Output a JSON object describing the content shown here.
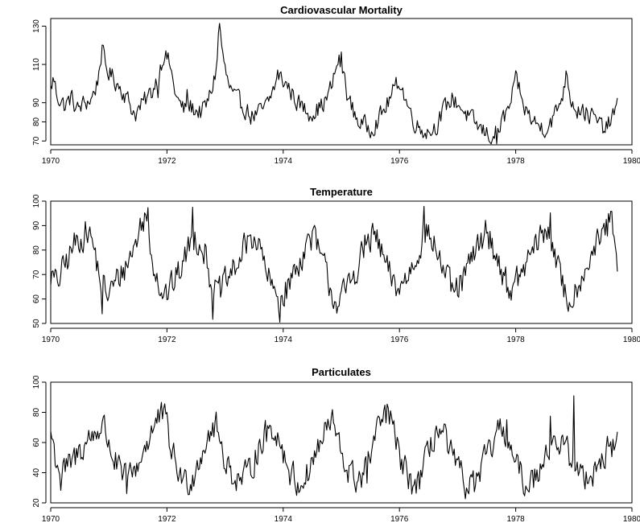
{
  "figure": {
    "background": "#ffffff",
    "line_color": "#000000"
  },
  "chart_data": [
    {
      "type": "line",
      "title": "Cardiovascular Mortality",
      "xlabel": "",
      "ylabel": "",
      "xlim": [
        1970,
        1980
      ],
      "ylim": [
        68,
        134
      ],
      "x_ticks": [
        1970,
        1972,
        1974,
        1976,
        1978,
        1980
      ],
      "y_ticks": [
        70,
        80,
        90,
        110,
        130
      ],
      "grid": false,
      "legend": "none",
      "frequency": "weekly",
      "x_start": 1970.0,
      "x_end": 1979.75,
      "anchors": [
        [
          1970.0,
          97
        ],
        [
          1970.05,
          103
        ],
        [
          1970.1,
          95
        ],
        [
          1970.15,
          92
        ],
        [
          1970.25,
          88
        ],
        [
          1970.35,
          93
        ],
        [
          1970.45,
          86
        ],
        [
          1970.55,
          89
        ],
        [
          1970.7,
          92
        ],
        [
          1970.8,
          100
        ],
        [
          1970.88,
          118
        ],
        [
          1970.95,
          108
        ],
        [
          1971.05,
          104
        ],
        [
          1971.15,
          100
        ],
        [
          1971.25,
          96
        ],
        [
          1971.35,
          90
        ],
        [
          1971.45,
          84
        ],
        [
          1971.55,
          88
        ],
        [
          1971.65,
          92
        ],
        [
          1971.75,
          96
        ],
        [
          1971.85,
          105
        ],
        [
          1971.95,
          116
        ],
        [
          1972.05,
          110
        ],
        [
          1972.12,
          98
        ],
        [
          1972.2,
          90
        ],
        [
          1972.3,
          86
        ],
        [
          1972.4,
          88
        ],
        [
          1972.5,
          86
        ],
        [
          1972.6,
          85
        ],
        [
          1972.7,
          90
        ],
        [
          1972.78,
          98
        ],
        [
          1972.85,
          108
        ],
        [
          1972.9,
          132
        ],
        [
          1972.94,
          121
        ],
        [
          1972.98,
          110
        ],
        [
          1973.05,
          100
        ],
        [
          1973.15,
          93
        ],
        [
          1973.25,
          90
        ],
        [
          1973.35,
          87
        ],
        [
          1973.45,
          83
        ],
        [
          1973.55,
          84
        ],
        [
          1973.65,
          86
        ],
        [
          1973.75,
          90
        ],
        [
          1973.85,
          99
        ],
        [
          1973.95,
          103
        ],
        [
          1974.05,
          100
        ],
        [
          1974.15,
          95
        ],
        [
          1974.25,
          90
        ],
        [
          1974.35,
          87
        ],
        [
          1974.45,
          85
        ],
        [
          1974.55,
          86
        ],
        [
          1974.65,
          88
        ],
        [
          1974.75,
          92
        ],
        [
          1974.85,
          100
        ],
        [
          1974.95,
          113
        ],
        [
          1975.05,
          104
        ],
        [
          1975.12,
          92
        ],
        [
          1975.2,
          86
        ],
        [
          1975.3,
          80
        ],
        [
          1975.4,
          78
        ],
        [
          1975.5,
          77
        ],
        [
          1975.6,
          80
        ],
        [
          1975.7,
          84
        ],
        [
          1975.8,
          90
        ],
        [
          1975.9,
          96
        ],
        [
          1976.0,
          102
        ],
        [
          1976.1,
          92
        ],
        [
          1976.2,
          84
        ],
        [
          1976.3,
          78
        ],
        [
          1976.4,
          76
        ],
        [
          1976.5,
          75
        ],
        [
          1976.6,
          77
        ],
        [
          1976.7,
          82
        ],
        [
          1976.8,
          88
        ],
        [
          1976.9,
          92
        ],
        [
          1977.0,
          90
        ],
        [
          1977.1,
          86
        ],
        [
          1977.2,
          82
        ],
        [
          1977.3,
          79
        ],
        [
          1977.4,
          76
        ],
        [
          1977.5,
          74
        ],
        [
          1977.6,
          72
        ],
        [
          1977.7,
          76
        ],
        [
          1977.8,
          82
        ],
        [
          1977.9,
          88
        ],
        [
          1978.0,
          101
        ],
        [
          1978.1,
          90
        ],
        [
          1978.2,
          85
        ],
        [
          1978.3,
          80
        ],
        [
          1978.4,
          78
        ],
        [
          1978.5,
          77
        ],
        [
          1978.6,
          80
        ],
        [
          1978.7,
          85
        ],
        [
          1978.8,
          94
        ],
        [
          1978.88,
          106
        ],
        [
          1978.95,
          92
        ],
        [
          1979.05,
          88
        ],
        [
          1979.15,
          86
        ],
        [
          1979.25,
          84
        ],
        [
          1979.35,
          82
        ],
        [
          1979.45,
          78
        ],
        [
          1979.55,
          76
        ],
        [
          1979.62,
          80
        ],
        [
          1979.7,
          85
        ],
        [
          1979.75,
          87
        ]
      ],
      "noise": 4.5,
      "spikes": [
        [
          1971.85,
          -12
        ],
        [
          1972.35,
          10
        ],
        [
          1973.9,
          6
        ],
        [
          1975.0,
          8
        ],
        [
          1977.68,
          -8
        ],
        [
          1978.05,
          6
        ],
        [
          1979.05,
          -6
        ]
      ]
    },
    {
      "type": "line",
      "title": "Temperature",
      "xlabel": "",
      "ylabel": "",
      "xlim": [
        1970,
        1980
      ],
      "ylim": [
        50,
        100
      ],
      "x_ticks": [
        1970,
        1972,
        1974,
        1976,
        1978,
        1980
      ],
      "y_ticks": [
        50,
        60,
        70,
        80,
        90,
        100
      ],
      "grid": false,
      "legend": "none",
      "frequency": "weekly",
      "x_start": 1970.0,
      "x_end": 1979.75,
      "anchors": [
        [
          1970.0,
          70
        ],
        [
          1970.1,
          66
        ],
        [
          1970.25,
          74
        ],
        [
          1970.4,
          82
        ],
        [
          1970.55,
          86
        ],
        [
          1970.65,
          88
        ],
        [
          1970.75,
          80
        ],
        [
          1970.85,
          68
        ],
        [
          1970.95,
          62
        ],
        [
          1971.05,
          64
        ],
        [
          1971.15,
          68
        ],
        [
          1971.3,
          74
        ],
        [
          1971.45,
          82
        ],
        [
          1971.55,
          90
        ],
        [
          1971.62,
          94
        ],
        [
          1971.7,
          84
        ],
        [
          1971.8,
          72
        ],
        [
          1971.9,
          64
        ],
        [
          1972.0,
          62
        ],
        [
          1972.15,
          68
        ],
        [
          1972.3,
          76
        ],
        [
          1972.45,
          86
        ],
        [
          1972.55,
          84
        ],
        [
          1972.65,
          80
        ],
        [
          1972.75,
          68
        ],
        [
          1972.85,
          62
        ],
        [
          1972.95,
          64
        ],
        [
          1973.1,
          70
        ],
        [
          1973.25,
          76
        ],
        [
          1973.4,
          84
        ],
        [
          1973.5,
          86
        ],
        [
          1973.6,
          80
        ],
        [
          1973.7,
          72
        ],
        [
          1973.8,
          64
        ],
        [
          1973.95,
          60
        ],
        [
          1974.1,
          66
        ],
        [
          1974.25,
          74
        ],
        [
          1974.4,
          82
        ],
        [
          1974.5,
          86
        ],
        [
          1974.6,
          80
        ],
        [
          1974.72,
          72
        ],
        [
          1974.85,
          62
        ],
        [
          1974.95,
          58
        ],
        [
          1975.1,
          64
        ],
        [
          1975.25,
          72
        ],
        [
          1975.4,
          80
        ],
        [
          1975.55,
          86
        ],
        [
          1975.65,
          82
        ],
        [
          1975.75,
          74
        ],
        [
          1975.9,
          66
        ],
        [
          1976.0,
          64
        ],
        [
          1976.15,
          70
        ],
        [
          1976.3,
          78
        ],
        [
          1976.42,
          88
        ],
        [
          1976.55,
          84
        ],
        [
          1976.65,
          80
        ],
        [
          1976.75,
          72
        ],
        [
          1976.85,
          66
        ],
        [
          1976.95,
          62
        ],
        [
          1977.1,
          68
        ],
        [
          1977.25,
          76
        ],
        [
          1977.4,
          84
        ],
        [
          1977.5,
          88
        ],
        [
          1977.6,
          82
        ],
        [
          1977.72,
          74
        ],
        [
          1977.85,
          66
        ],
        [
          1977.95,
          64
        ],
        [
          1978.1,
          70
        ],
        [
          1978.25,
          78
        ],
        [
          1978.4,
          84
        ],
        [
          1978.55,
          88
        ],
        [
          1978.65,
          82
        ],
        [
          1978.75,
          70
        ],
        [
          1978.85,
          62
        ],
        [
          1978.95,
          60
        ],
        [
          1979.1,
          68
        ],
        [
          1979.25,
          76
        ],
        [
          1979.4,
          82
        ],
        [
          1979.55,
          88
        ],
        [
          1979.65,
          90
        ],
        [
          1979.72,
          78
        ],
        [
          1979.75,
          71
        ]
      ],
      "noise": 5.5,
      "spikes": [
        [
          1970.88,
          -12
        ],
        [
          1971.68,
          10
        ],
        [
          1972.44,
          12
        ],
        [
          1972.78,
          -14
        ],
        [
          1973.95,
          -10
        ],
        [
          1974.55,
          6
        ],
        [
          1975.4,
          6
        ],
        [
          1976.43,
          10
        ],
        [
          1978.6,
          10
        ],
        [
          1979.6,
          6
        ],
        [
          1978.9,
          -6
        ]
      ]
    },
    {
      "type": "line",
      "title": "Particulates",
      "xlabel": "",
      "ylabel": "",
      "xlim": [
        1970,
        1980
      ],
      "ylim": [
        20,
        100
      ],
      "x_ticks": [
        1970,
        1972,
        1974,
        1976,
        1978,
        1980
      ],
      "y_ticks": [
        20,
        40,
        60,
        80,
        100
      ],
      "grid": false,
      "legend": "none",
      "frequency": "weekly",
      "x_start": 1970.0,
      "x_end": 1979.75,
      "anchors": [
        [
          1970.0,
          68
        ],
        [
          1970.08,
          50
        ],
        [
          1970.2,
          40
        ],
        [
          1970.35,
          45
        ],
        [
          1970.5,
          55
        ],
        [
          1970.65,
          62
        ],
        [
          1970.8,
          68
        ],
        [
          1970.9,
          72
        ],
        [
          1971.0,
          60
        ],
        [
          1971.1,
          48
        ],
        [
          1971.25,
          35
        ],
        [
          1971.4,
          38
        ],
        [
          1971.55,
          50
        ],
        [
          1971.7,
          65
        ],
        [
          1971.85,
          75
        ],
        [
          1971.95,
          78
        ],
        [
          1972.05,
          60
        ],
        [
          1972.15,
          45
        ],
        [
          1972.3,
          33
        ],
        [
          1972.45,
          38
        ],
        [
          1972.6,
          55
        ],
        [
          1972.75,
          68
        ],
        [
          1972.85,
          70
        ],
        [
          1972.95,
          55
        ],
        [
          1973.1,
          40
        ],
        [
          1973.25,
          35
        ],
        [
          1973.4,
          38
        ],
        [
          1973.55,
          55
        ],
        [
          1973.7,
          65
        ],
        [
          1973.85,
          70
        ],
        [
          1973.95,
          60
        ],
        [
          1974.1,
          42
        ],
        [
          1974.25,
          32
        ],
        [
          1974.4,
          38
        ],
        [
          1974.55,
          52
        ],
        [
          1974.7,
          65
        ],
        [
          1974.85,
          75
        ],
        [
          1974.95,
          58
        ],
        [
          1975.1,
          42
        ],
        [
          1975.25,
          35
        ],
        [
          1975.4,
          40
        ],
        [
          1975.55,
          58
        ],
        [
          1975.7,
          75
        ],
        [
          1975.8,
          80
        ],
        [
          1975.9,
          65
        ],
        [
          1976.05,
          45
        ],
        [
          1976.2,
          32
        ],
        [
          1976.35,
          35
        ],
        [
          1976.5,
          52
        ],
        [
          1976.62,
          68
        ],
        [
          1976.75,
          65
        ],
        [
          1976.9,
          50
        ],
        [
          1977.05,
          38
        ],
        [
          1977.2,
          30
        ],
        [
          1977.35,
          35
        ],
        [
          1977.5,
          50
        ],
        [
          1977.65,
          62
        ],
        [
          1977.8,
          70
        ],
        [
          1977.9,
          55
        ],
        [
          1978.05,
          40
        ],
        [
          1978.2,
          32
        ],
        [
          1978.35,
          38
        ],
        [
          1978.5,
          55
        ],
        [
          1978.65,
          62
        ],
        [
          1978.8,
          58
        ],
        [
          1978.95,
          50
        ],
        [
          1979.05,
          40
        ],
        [
          1979.2,
          38
        ],
        [
          1979.35,
          42
        ],
        [
          1979.5,
          50
        ],
        [
          1979.65,
          58
        ],
        [
          1979.75,
          60
        ]
      ],
      "noise": 9,
      "spikes": [
        [
          1971.9,
          10
        ],
        [
          1975.85,
          8
        ],
        [
          1977.85,
          12
        ],
        [
          1979.0,
          46
        ],
        [
          1978.6,
          18
        ],
        [
          1970.18,
          -14
        ],
        [
          1971.3,
          -10
        ],
        [
          1975.45,
          -12
        ]
      ]
    }
  ]
}
